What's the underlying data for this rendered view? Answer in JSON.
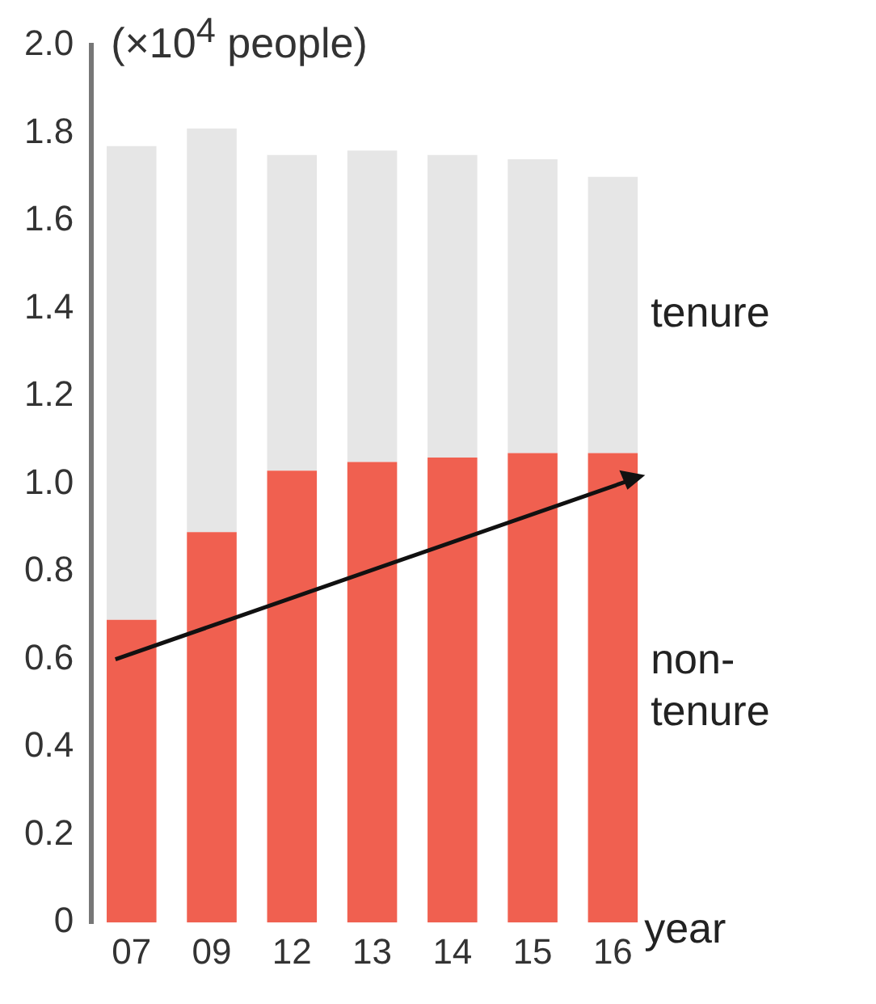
{
  "chart_data": {
    "type": "bar",
    "stacked": true,
    "ylabel": "(×10$^{4}$ people)",
    "xlabel": "year",
    "categories": [
      "07",
      "09",
      "12",
      "13",
      "14",
      "15",
      "16"
    ],
    "series": [
      {
        "name": "non-tenure",
        "color": "#f06050",
        "values": [
          0.69,
          0.89,
          1.03,
          1.05,
          1.06,
          1.07,
          1.07
        ]
      },
      {
        "name": "tenure",
        "color": "#e6e6e6",
        "values": [
          1.08,
          0.92,
          0.72,
          0.71,
          0.69,
          0.67,
          0.63
        ]
      }
    ],
    "ylim": [
      0,
      2
    ],
    "yticks": [
      {
        "value": 0,
        "label": "0"
      },
      0.2,
      0.4,
      0.6,
      0.8,
      {
        "value": 1,
        "label": "1.0"
      },
      1.2,
      1.4,
      1.6,
      1.8,
      {
        "value": 2,
        "label": "2.0"
      }
    ],
    "grid": false,
    "legend": false
  }
}
